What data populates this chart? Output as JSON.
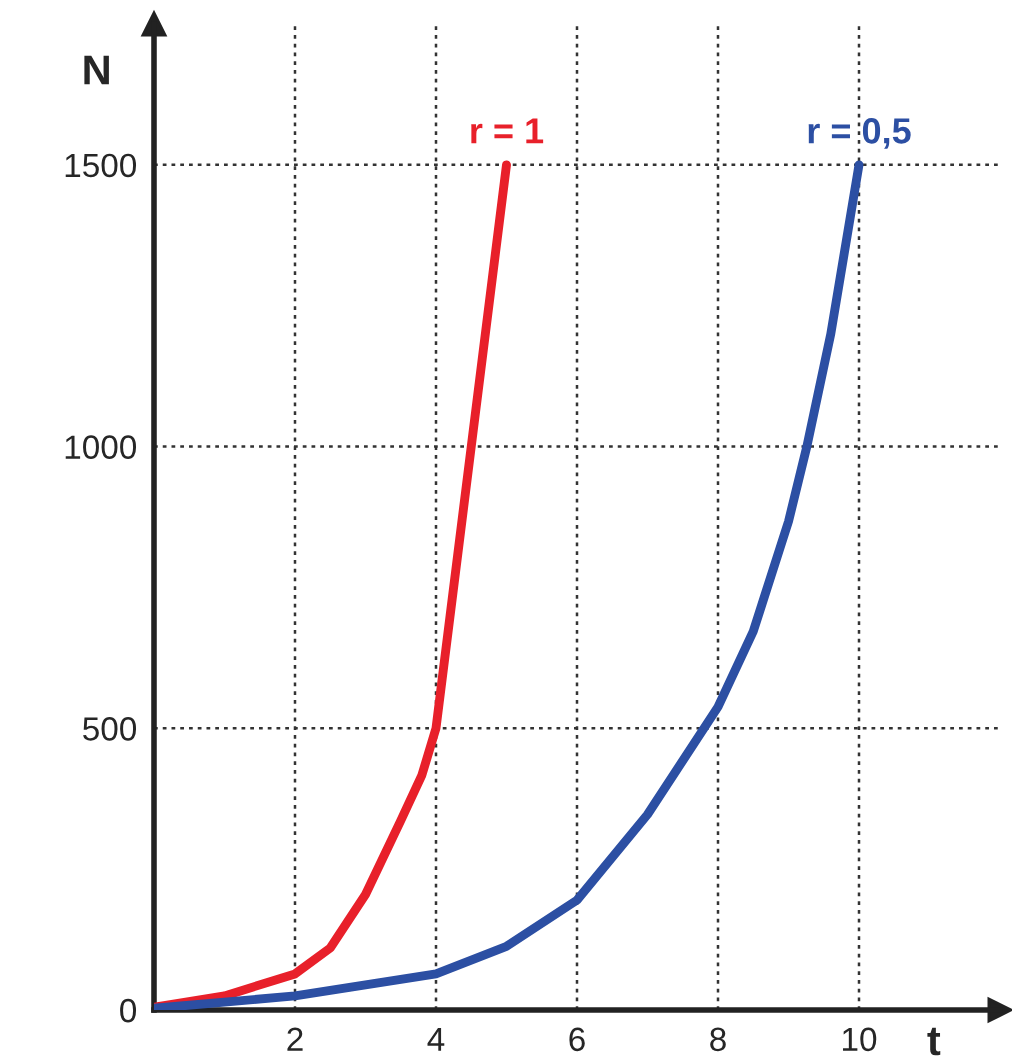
{
  "chart_data": {
    "type": "line",
    "xlabel": "t",
    "ylabel": "N",
    "xlim": [
      0,
      12
    ],
    "ylim": [
      0,
      1750
    ],
    "xticks": [
      2,
      4,
      6,
      8,
      10
    ],
    "yticks": [
      0,
      500,
      1000,
      1500
    ],
    "grid": true,
    "legend": false,
    "line_style": "solid",
    "marker": "none",
    "series": [
      {
        "name": "r = 1",
        "color": "#e8202a",
        "x": [
          0,
          1,
          2,
          2.5,
          3,
          3.5,
          3.8,
          4,
          4.2,
          4.5,
          4.8,
          5
        ],
        "values": [
          5,
          25,
          64,
          110,
          205,
          336,
          417,
          500,
          700,
          1000,
          1300,
          1500
        ]
      },
      {
        "name": "r = 0,5",
        "color": "#2c4fa3",
        "x": [
          0,
          2,
          4,
          5,
          6,
          7,
          8,
          8.5,
          9,
          9.26,
          9.6,
          10
        ],
        "values": [
          3,
          25,
          64,
          113,
          195,
          347,
          538,
          672,
          867,
          1000,
          1200,
          1500
        ]
      }
    ]
  }
}
